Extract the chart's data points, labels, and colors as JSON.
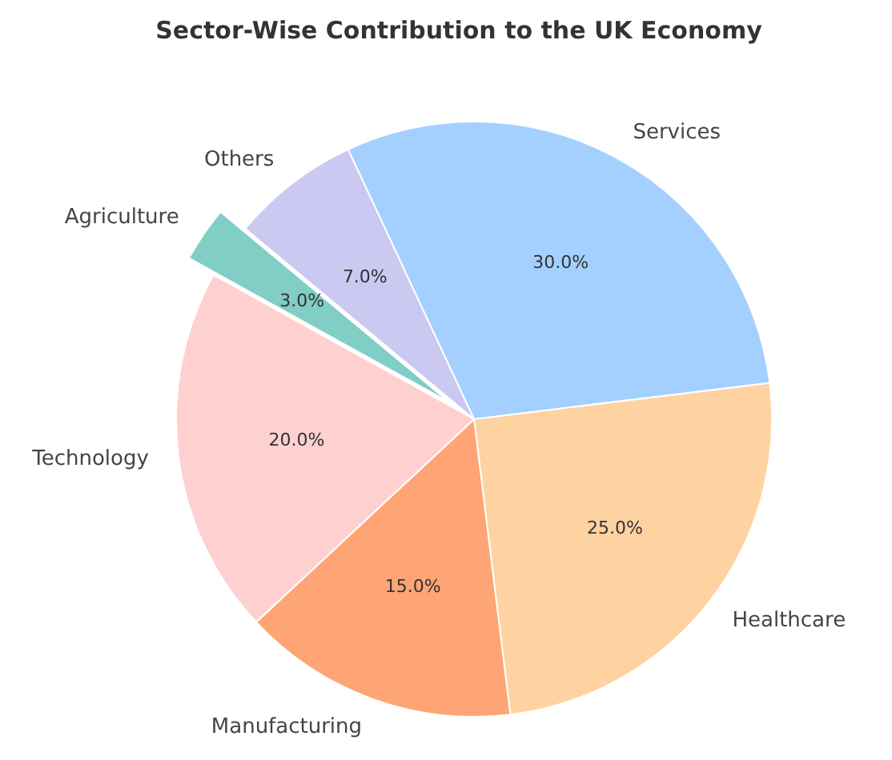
{
  "chart_data": {
    "type": "pie",
    "title": "Sector-Wise Contribution to the UK Economy",
    "categories": [
      "Services",
      "Healthcare",
      "Manufacturing",
      "Technology",
      "Agriculture",
      "Others"
    ],
    "values": [
      30,
      25,
      15,
      20,
      3,
      7
    ],
    "colors": [
      "#a3d0ff",
      "#ffd2a1",
      "#ffa474",
      "#ffd0d0",
      "#80cec6",
      "#cbc8f2"
    ],
    "value_labels": [
      "30.0%",
      "25.0%",
      "15.0%",
      "20.0%",
      "3.0%",
      "7.0%"
    ]
  }
}
